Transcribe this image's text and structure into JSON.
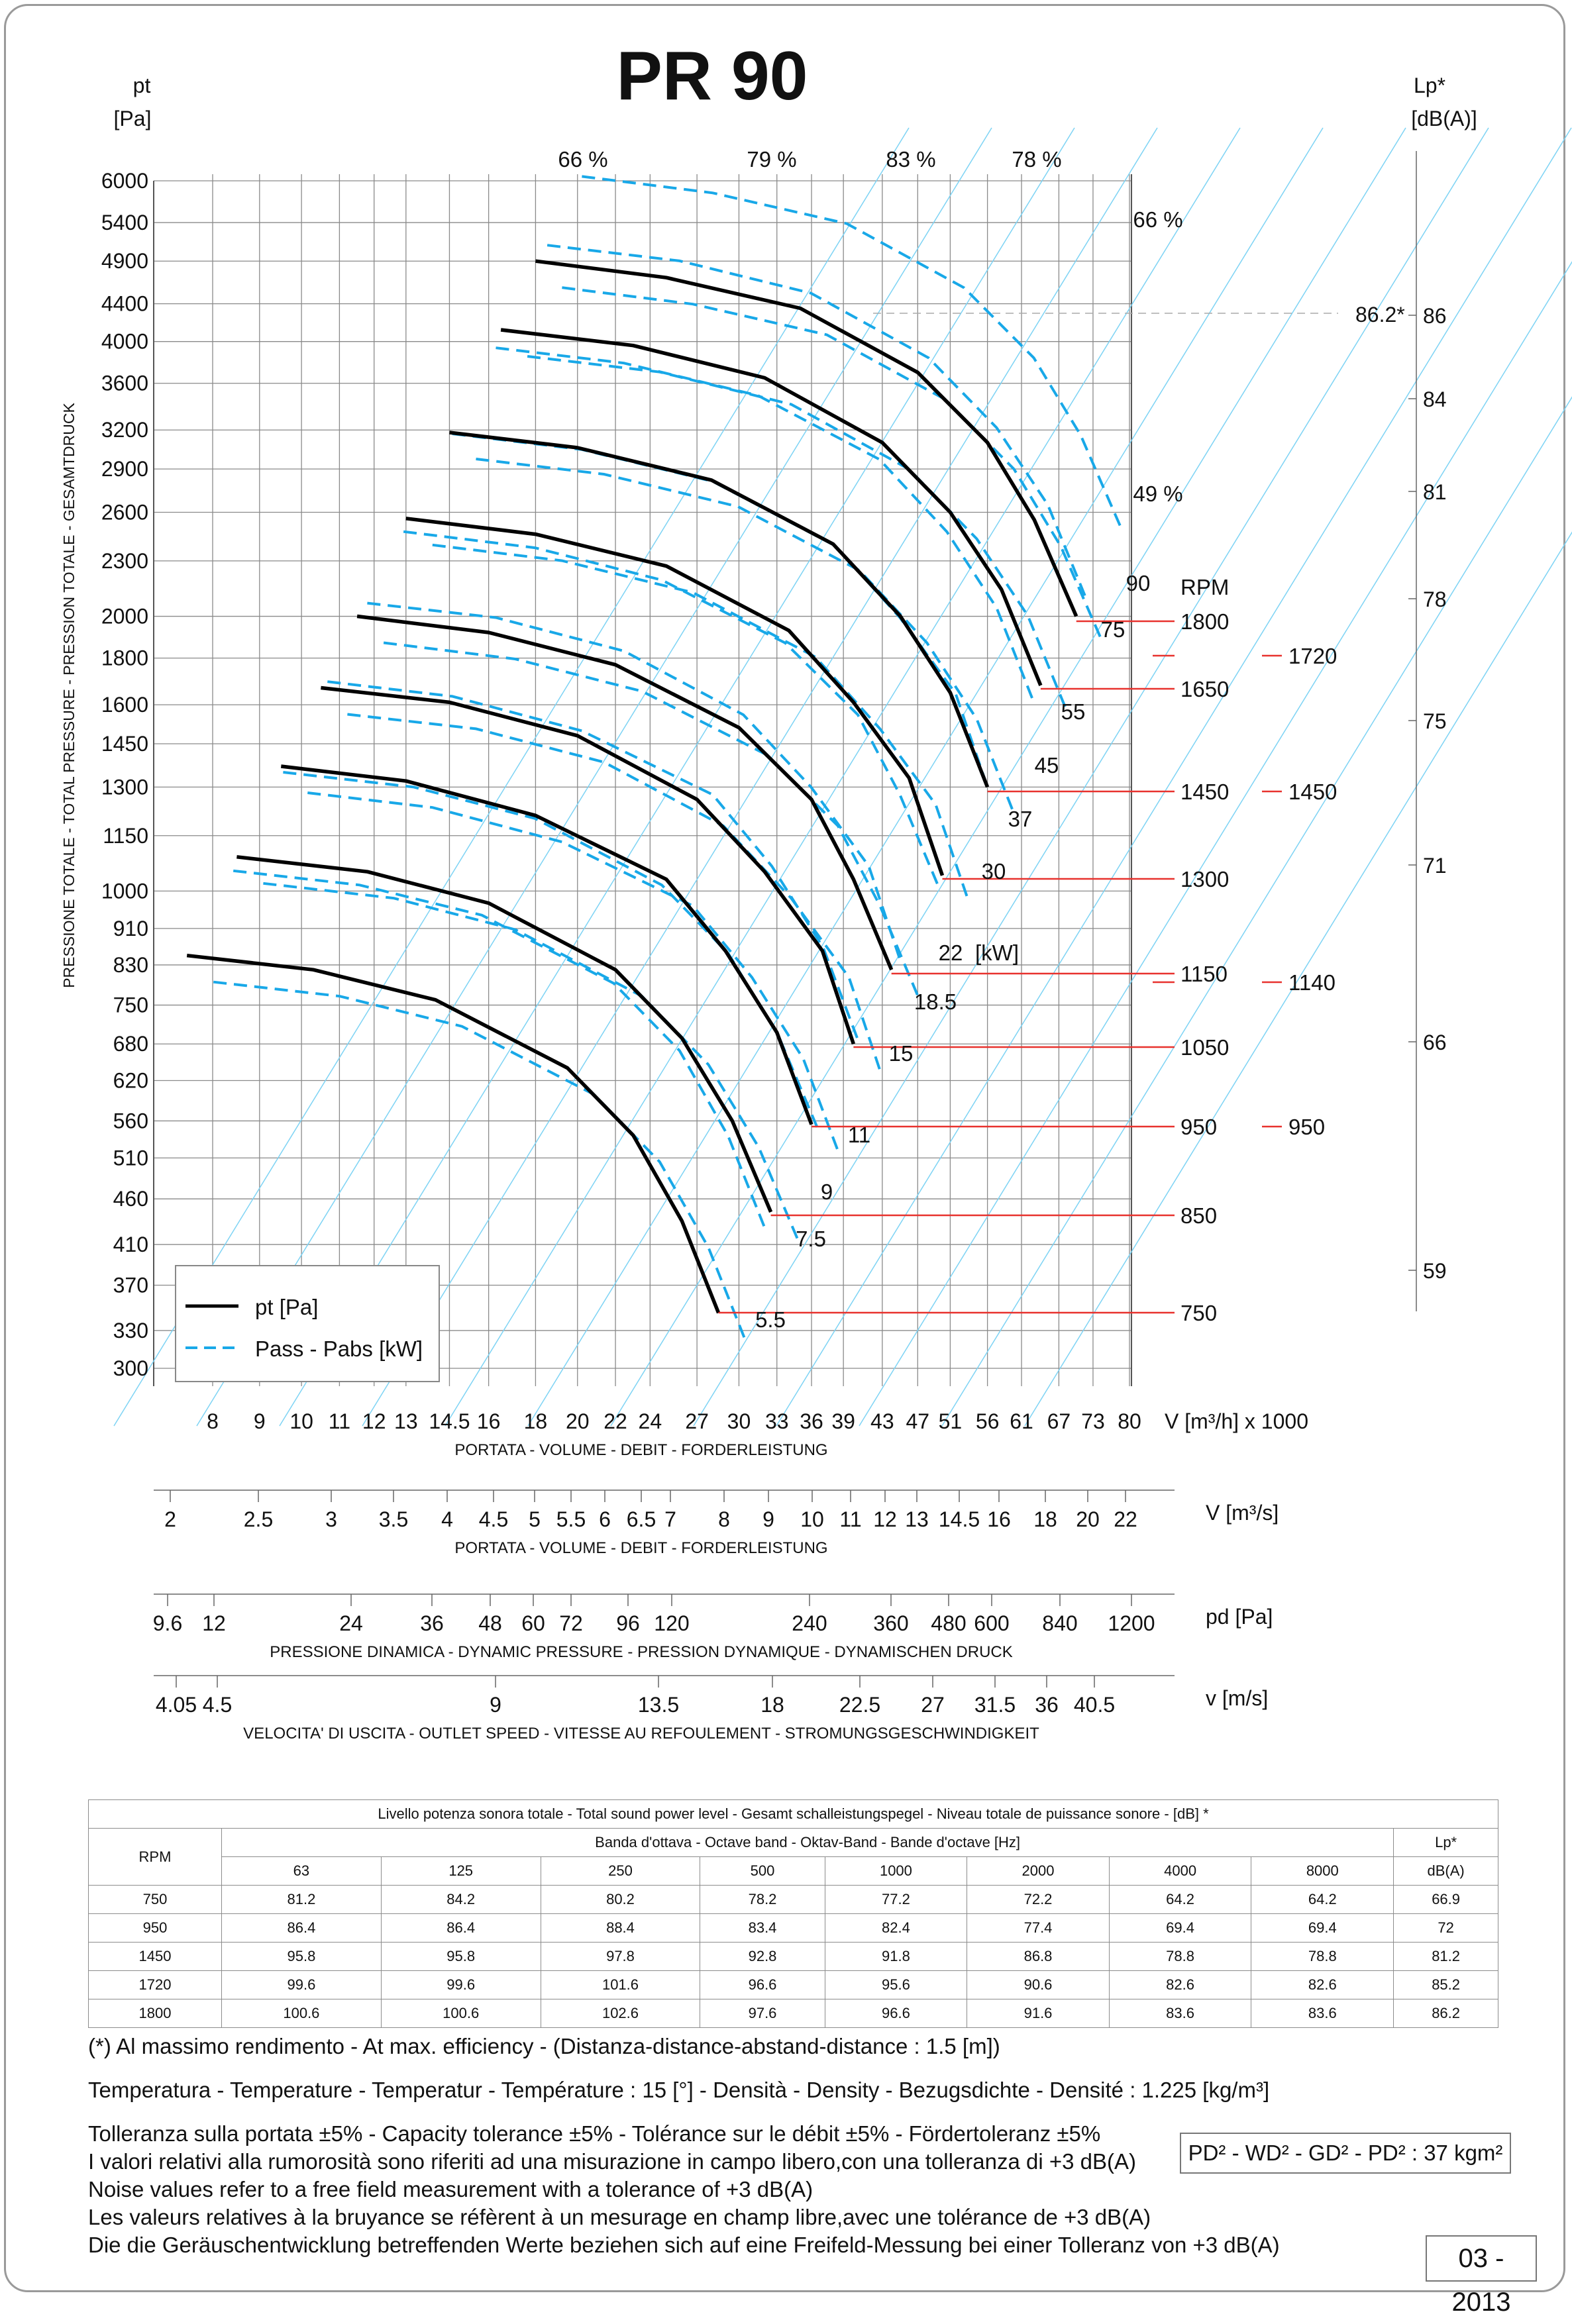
{
  "title": "PR 90",
  "left_axis_label": [
    "pt",
    "[Pa]"
  ],
  "right_axis_label": [
    "Lp*",
    "[dB(A)]"
  ],
  "vertical_axis_title": "PRESSIONE TOTALE - TOTAL PRESSURE - PRESSION TOTALE - GESAMTDRUCK",
  "chart_data": {
    "type": "line",
    "yscale": "log",
    "xscale": "log",
    "y_ticks": [
      "6000",
      "5400",
      "4900",
      "4400",
      "4000",
      "3600",
      "3200",
      "2900",
      "2600",
      "2300",
      "2000",
      "1800",
      "1600",
      "1450",
      "1300",
      "1150",
      "1000",
      "910",
      "830",
      "750",
      "680",
      "620",
      "560",
      "510",
      "460",
      "410",
      "370",
      "330",
      "300"
    ],
    "lp_ticks": [
      "86",
      "84",
      "81",
      "78",
      "75",
      "71",
      "66",
      "59"
    ],
    "lp_marker": "86.2*",
    "efficiency_labels": [
      "66 %",
      "79 %",
      "83 %",
      "78 %",
      "66 %",
      "49 %"
    ],
    "x_flow_ticks": [
      "8",
      "9",
      "10",
      "11",
      "12",
      "13",
      "14.5",
      "16",
      "18",
      "20",
      "22",
      "24",
      "27",
      "30",
      "33",
      "36",
      "39",
      "43",
      "47",
      "51",
      "56",
      "61",
      "67",
      "73",
      "80"
    ],
    "x_flow_unit": "V [m³/h]  x 1000",
    "x_flow_caption": "PORTATA - VOLUME - DEBIT - FORDERLEISTUNG",
    "x_flow_m3s_ticks": [
      "2",
      "2.5",
      "3",
      "3.5",
      "4",
      "4.5",
      "5",
      "5.5",
      "6",
      "6.5",
      "7",
      "8",
      "9",
      "10",
      "11",
      "12",
      "13",
      "14.5",
      "16",
      "18",
      "20",
      "22"
    ],
    "x_flow_m3s_unit": "V  [m³/s]",
    "x_flow_m3s_caption": "PORTATA - VOLUME - DEBIT - FORDERLEISTUNG",
    "pd_ticks": [
      "9.6",
      "12",
      "24",
      "36",
      "48",
      "60",
      "72",
      "96",
      "120",
      "240",
      "360",
      "480",
      "600",
      "840",
      "1200"
    ],
    "pd_unit": "pd  [Pa]",
    "pd_caption": "PRESSIONE DINAMICA - DYNAMIC PRESSURE - PRESSION DYNAMIQUE - DYNAMISCHEN DRUCK",
    "v_ticks": [
      "4.05",
      "4.5",
      "9",
      "13.5",
      "18",
      "22.5",
      "27",
      "31.5",
      "36",
      "40.5"
    ],
    "v_unit": "v  [m/s]",
    "v_caption": "VELOCITA' DI USCITA - OUTLET SPEED - VITESSE AU REFOULEMENT - STROMUNGSGESCHWINDIGKEIT",
    "rpm_header": "RPM",
    "rpm_labels": [
      "1800",
      "1650",
      "1450",
      "1300",
      "1150",
      "1050",
      "950",
      "850",
      "750"
    ],
    "lp_rpm_labels": [
      "1720",
      "1450",
      "1140",
      "950"
    ],
    "power_labels": [
      "90",
      "75",
      "55",
      "45",
      "37",
      "30",
      "22",
      "18.5",
      "15",
      "11",
      "9",
      "7.5",
      "5.5"
    ],
    "power_unit": "[kW]",
    "legend": [
      "pt [Pa]",
      "Pass - Pabs [kW]"
    ],
    "curves": [
      {
        "rpm": 1800,
        "pts": [
          [
            18,
            4900
          ],
          [
            25,
            4700
          ],
          [
            35,
            4350
          ],
          [
            47,
            3700
          ],
          [
            56,
            3100
          ],
          [
            63,
            2550
          ],
          [
            70,
            2000
          ]
        ]
      },
      {
        "rpm": 1650,
        "pts": [
          [
            16.5,
            4120
          ],
          [
            23,
            3960
          ],
          [
            32,
            3650
          ],
          [
            43,
            3100
          ],
          [
            51,
            2600
          ],
          [
            58,
            2140
          ],
          [
            64,
            1680
          ]
        ]
      },
      {
        "rpm": 1450,
        "pts": [
          [
            14.5,
            3180
          ],
          [
            20,
            3060
          ],
          [
            28,
            2820
          ],
          [
            38,
            2400
          ],
          [
            45,
            2000
          ],
          [
            51,
            1650
          ],
          [
            56,
            1300
          ]
        ]
      },
      {
        "rpm": 1300,
        "pts": [
          [
            13,
            2560
          ],
          [
            18,
            2460
          ],
          [
            25,
            2270
          ],
          [
            34,
            1930
          ],
          [
            40,
            1610
          ],
          [
            46,
            1330
          ],
          [
            50,
            1040
          ]
        ]
      },
      {
        "rpm": 1150,
        "pts": [
          [
            11.5,
            2000
          ],
          [
            16,
            1920
          ],
          [
            22,
            1770
          ],
          [
            30,
            1510
          ],
          [
            36,
            1260
          ],
          [
            40,
            1030
          ],
          [
            44,
            820
          ]
        ]
      },
      {
        "rpm": 1050,
        "pts": [
          [
            10.5,
            1670
          ],
          [
            14.5,
            1610
          ],
          [
            20,
            1480
          ],
          [
            27,
            1260
          ],
          [
            32,
            1050
          ],
          [
            37,
            860
          ],
          [
            40,
            680
          ]
        ]
      },
      {
        "rpm": 950,
        "pts": [
          [
            9.5,
            1370
          ],
          [
            13,
            1320
          ],
          [
            18,
            1210
          ],
          [
            25,
            1030
          ],
          [
            29,
            860
          ],
          [
            33,
            700
          ],
          [
            36,
            555
          ]
        ]
      },
      {
        "rpm": 850,
        "pts": [
          [
            8.5,
            1090
          ],
          [
            11.8,
            1050
          ],
          [
            16,
            970
          ],
          [
            22,
            820
          ],
          [
            26,
            690
          ],
          [
            29.5,
            560
          ],
          [
            32.5,
            445
          ]
        ]
      },
      {
        "rpm": 750,
        "pts": [
          [
            7.5,
            850
          ],
          [
            10.3,
            820
          ],
          [
            14,
            760
          ],
          [
            19.5,
            640
          ],
          [
            23,
            540
          ],
          [
            26,
            435
          ],
          [
            28.5,
            345
          ]
        ]
      }
    ]
  },
  "table": {
    "caption": "Livello potenza sonora totale - Total sound power level - Gesamt schalleistungspegel - Niveau totale de puissance sonore - [dB]   *",
    "band_caption": "Banda d'ottava - Octave band - Oktav-Band - Bande d'octave [Hz]",
    "rpm_header": "RPM",
    "lp_header": "Lp*",
    "lp_unit": "dB(A)",
    "bands": [
      "63",
      "125",
      "250",
      "500",
      "1000",
      "2000",
      "4000",
      "8000"
    ],
    "rows": [
      {
        "rpm": "750",
        "vals": [
          "81.2",
          "84.2",
          "80.2",
          "78.2",
          "77.2",
          "72.2",
          "64.2",
          "64.2"
        ],
        "lp": "66.9"
      },
      {
        "rpm": "950",
        "vals": [
          "86.4",
          "86.4",
          "88.4",
          "83.4",
          "82.4",
          "77.4",
          "69.4",
          "69.4"
        ],
        "lp": "72"
      },
      {
        "rpm": "1450",
        "vals": [
          "95.8",
          "95.8",
          "97.8",
          "92.8",
          "91.8",
          "86.8",
          "78.8",
          "78.8"
        ],
        "lp": "81.2"
      },
      {
        "rpm": "1720",
        "vals": [
          "99.6",
          "99.6",
          "101.6",
          "96.6",
          "95.6",
          "90.6",
          "82.6",
          "82.6"
        ],
        "lp": "85.2"
      },
      {
        "rpm": "1800",
        "vals": [
          "100.6",
          "100.6",
          "102.6",
          "97.6",
          "96.6",
          "91.6",
          "83.6",
          "83.6"
        ],
        "lp": "86.2"
      }
    ]
  },
  "notes": {
    "n1": "(*) Al massimo rendimento - At max. efficiency - (Distanza-distance-abstand-distance : 1.5 [m])",
    "n2": "Temperatura - Temperature - Temperatur - Température : 15 [°]  -  Densità - Density - Bezugsdichte - Densité : 1.225 [kg/m³]",
    "n3": "Tolleranza sulla portata  ±5% - Capacity tolerance ±5% - Tolérance sur le débit ±5% - Fördertoleranz ±5%",
    "n4": "I valori relativi alla rumorosità sono riferiti ad una misurazione in campo libero,con una tolleranza di +3 dB(A)",
    "n5": "Noise values refer to a free field measurement with a tolerance of +3 dB(A)",
    "n6": "Les valeurs relatives à la bruyance se réfèrent à un mesurage en champ libre,avec une tolérance de +3 dB(A)",
    "n7": "Die die Geräuschentwicklung betreffenden Werte beziehen sich auf eine Freifeld-Messung bei einer Tolleranz von +3 dB(A)",
    "pd2": "PD² -  WD² - GD² -  PD²  :  37 kgm²",
    "date": "03 - 2013"
  }
}
